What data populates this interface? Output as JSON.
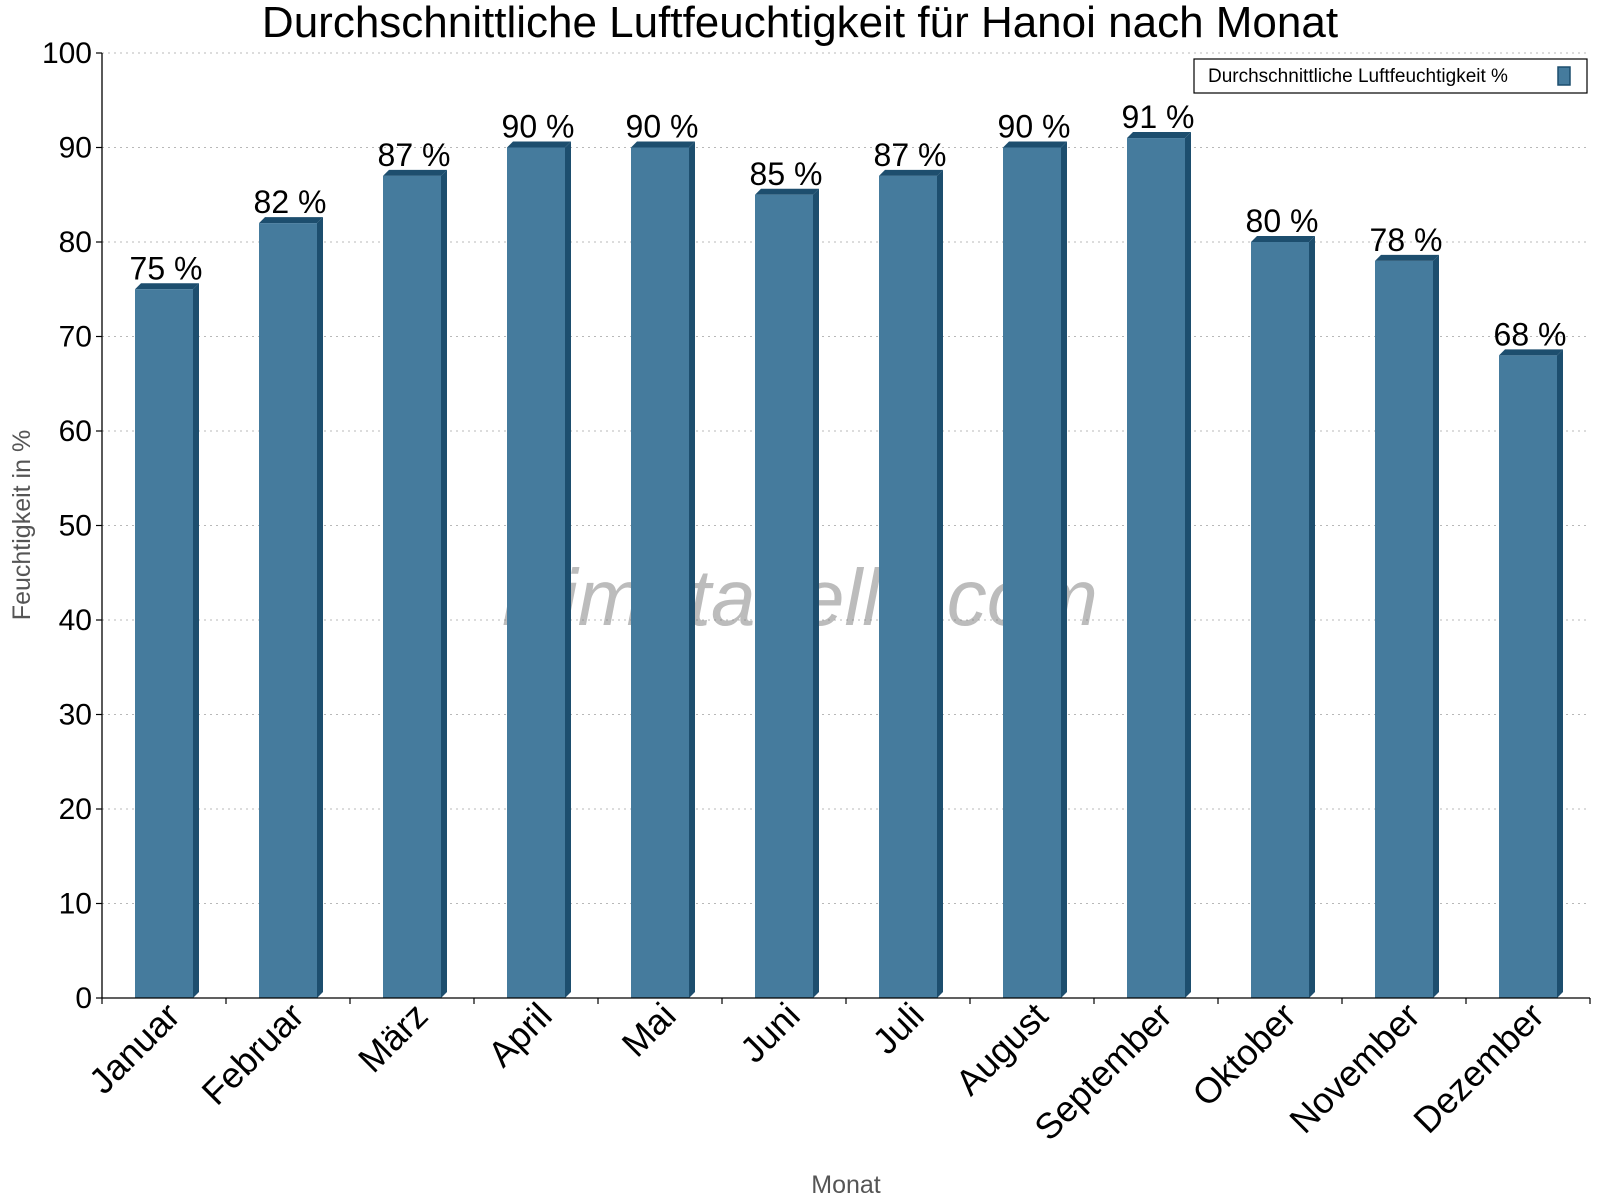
{
  "chart_data": {
    "type": "bar",
    "title": "Durchschnittliche Luftfeuchtigkeit für Hanoi nach Monat",
    "xlabel": "Monat",
    "ylabel": "Feuchtigkeit in %",
    "categories": [
      "Januar",
      "Februar",
      "März",
      "April",
      "Mai",
      "Juni",
      "Juli",
      "August",
      "September",
      "Oktober",
      "November",
      "Dezember"
    ],
    "series": [
      {
        "name": "Durchschnittliche Luftfeuchtigkeit %",
        "values": [
          75,
          82,
          87,
          90,
          90,
          85,
          87,
          90,
          91,
          80,
          78,
          68
        ],
        "labels": [
          "75 %",
          "82 %",
          "87 %",
          "90 %",
          "90 %",
          "85 %",
          "87 %",
          "90 %",
          "91 %",
          "80 %",
          "78 %",
          "68 %"
        ],
        "color": "#457b9d",
        "side_color": "#1d4e6e"
      }
    ],
    "ylim": [
      0,
      100
    ],
    "yticks": [
      0,
      10,
      20,
      30,
      40,
      50,
      60,
      70,
      80,
      90,
      100
    ],
    "grid": true,
    "legend_position": "top-right",
    "watermark": "klimatabelle.com"
  }
}
